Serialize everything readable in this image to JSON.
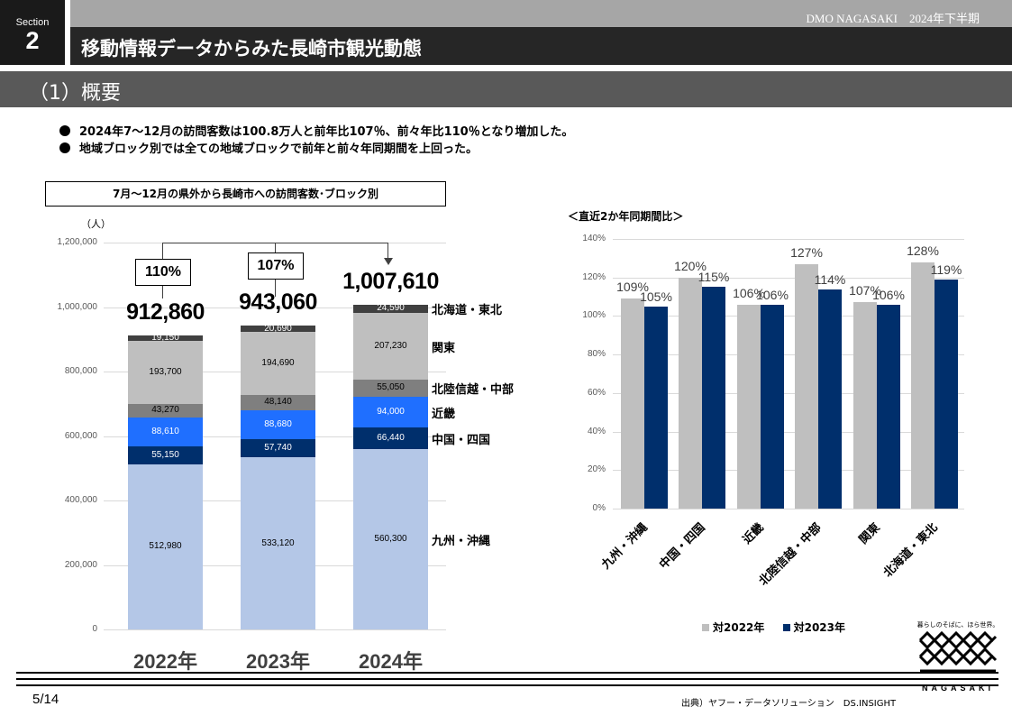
{
  "header": {
    "section_label": "Section",
    "section_number": "2",
    "org": "DMO NAGASAKI　2024年下半期",
    "title": "移動情報データからみた長崎市観光動態",
    "subtitle": "（1）概要"
  },
  "bullets": [
    "2024年7～12月の訪問客数は100.8万人と前年比107％、前々年比110％となり増加した。",
    "地域ブロック別では全ての地域ブロックで前年と前々年同期間を上回った。"
  ],
  "chart_data": [
    {
      "type": "bar",
      "stacked": true,
      "title": "7月～12月の県外から長崎市への訪問客数･ブロック別",
      "ylabel": "（人）",
      "ylim": [
        0,
        1200000
      ],
      "yticks": [
        "0",
        "200,000",
        "400,000",
        "600,000",
        "800,000",
        "1,000,000",
        "1,200,000"
      ],
      "categories": [
        "2022年",
        "2023年",
        "2024年"
      ],
      "series": [
        {
          "name": "九州・沖縄",
          "values": [
            512980,
            533120,
            560300
          ],
          "labels": [
            "512,980",
            "533,120",
            "560,300"
          ],
          "color": "#b4c7e7",
          "label_color": "#000000"
        },
        {
          "name": "中国・四国",
          "values": [
            55150,
            57740,
            66440
          ],
          "labels": [
            "55,150",
            "57,740",
            "66,440"
          ],
          "color": "#002f6c",
          "label_color": "#ffffff"
        },
        {
          "name": "近畿",
          "values": [
            88610,
            88680,
            94000
          ],
          "labels": [
            "88,610",
            "88,680",
            "94,000"
          ],
          "color": "#1f6fff",
          "label_color": "#ffffff"
        },
        {
          "name": "北陸信越・中部",
          "values": [
            43270,
            48140,
            55050
          ],
          "labels": [
            "43,270",
            "48,140",
            "55,050"
          ],
          "color": "#7f7f7f",
          "label_color": "#000000"
        },
        {
          "name": "関東",
          "values": [
            193700,
            194690,
            207230
          ],
          "labels": [
            "193,700",
            "194,690",
            "207,230"
          ],
          "color": "#bfbfbf",
          "label_color": "#000000"
        },
        {
          "name": "北海道・東北",
          "values": [
            19150,
            20690,
            24590
          ],
          "labels": [
            "19,150",
            "20,690",
            "24,590"
          ],
          "color": "#404040",
          "label_color": "#ffffff"
        }
      ],
      "totals": [
        "912,860",
        "943,060",
        "1,007,610"
      ],
      "ratios": [
        "110%",
        "107%"
      ],
      "grid": true
    },
    {
      "type": "bar",
      "title": "＜直近2か年同期間比＞",
      "ylim": [
        0,
        140
      ],
      "yticks": [
        "0%",
        "20%",
        "40%",
        "60%",
        "80%",
        "100%",
        "120%",
        "140%"
      ],
      "categories": [
        "九州・沖縄",
        "中国・四国",
        "近畿",
        "北陸信越・中部",
        "関東",
        "北海道・東北"
      ],
      "series": [
        {
          "name": "対2022年",
          "values": [
            109,
            120,
            106,
            127,
            107,
            128
          ],
          "labels": [
            "109%",
            "120%",
            "106%",
            "127%",
            "107%",
            "128%"
          ],
          "color": "#bfbfbf"
        },
        {
          "name": "対2023年",
          "values": [
            105,
            115,
            106,
            114,
            106,
            119
          ],
          "labels": [
            "105%",
            "115%",
            "106%",
            "114%",
            "106%",
            "119%"
          ],
          "color": "#002f6c"
        }
      ],
      "legend": "bottom",
      "grid": true
    }
  ],
  "footer": {
    "page": "5/14",
    "source": "出典）ヤフー・データソリューション　DS.INSIGHT",
    "logo_tagline": "暮らしのそばに、ほら世界。",
    "logo_word": "NAGASAKI"
  }
}
